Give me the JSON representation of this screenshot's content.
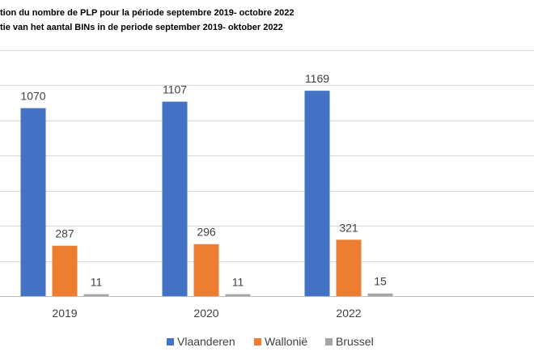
{
  "chart_data": {
    "type": "bar",
    "title_fr": "tion du nombre de PLP pour la période septembre 2019- octobre 2022",
    "title_nl": "tie van het aantal BINs in de periode september 2019- oktober 2022",
    "categories": [
      "2019",
      "2020",
      "2022"
    ],
    "series": [
      {
        "name": "Vlaanderen",
        "values": [
          1070,
          1107,
          1169
        ],
        "color": "#4472C4"
      },
      {
        "name": "Wallonië",
        "values": [
          287,
          296,
          321
        ],
        "color": "#ED7D31"
      },
      {
        "name": "Brussel",
        "values": [
          11,
          11,
          15
        ],
        "color": "#A5A5A5"
      }
    ],
    "ylim": [
      0,
      1400
    ],
    "grid": true,
    "legend": "bottom"
  }
}
